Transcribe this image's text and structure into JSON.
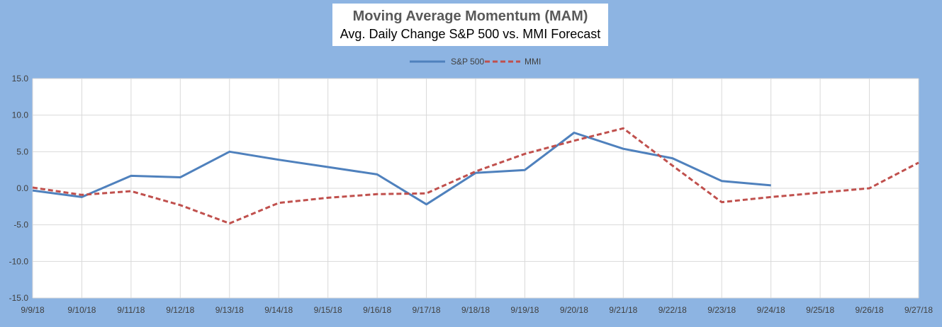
{
  "colors": {
    "background": "#8db4e2",
    "plot_area": "#ffffff",
    "gridline": "#d9d9d9",
    "axis_text": "#404040",
    "sp500": "#4f81bd",
    "mmi": "#c0504d"
  },
  "chart_data": {
    "type": "line",
    "title": "Moving Average Momentum (MAM)",
    "subtitle": "Avg. Daily Change S&P 500 vs. MMI Forecast",
    "xlabel": "",
    "ylabel": "",
    "categories": [
      "9/9/18",
      "9/10/18",
      "9/11/18",
      "9/12/18",
      "9/13/18",
      "9/14/18",
      "9/15/18",
      "9/16/18",
      "9/17/18",
      "9/18/18",
      "9/19/18",
      "9/20/18",
      "9/21/18",
      "9/22/18",
      "9/23/18",
      "9/24/18",
      "9/25/18",
      "9/26/18",
      "9/27/18"
    ],
    "ylim": [
      -15,
      15
    ],
    "yticks": [
      -15,
      -10,
      -5,
      0,
      5,
      10,
      15
    ],
    "ytick_labels": [
      "-15.0",
      "-10.0",
      "-5.0",
      "0.0",
      "5.0",
      "10.0",
      "15.0"
    ],
    "grid": true,
    "legend_position": "top-center",
    "series": [
      {
        "name": "S&P 500",
        "style": "solid",
        "values": [
          -0.3,
          -1.2,
          1.7,
          1.5,
          5.0,
          3.9,
          2.9,
          1.9,
          -2.2,
          2.1,
          2.5,
          7.6,
          5.4,
          4.1,
          1.0,
          0.4,
          null,
          null,
          null
        ]
      },
      {
        "name": "MMI",
        "style": "dashed",
        "values": [
          0.1,
          -0.9,
          -0.4,
          -2.3,
          -4.8,
          -2.0,
          -1.3,
          -0.8,
          -0.7,
          2.3,
          4.7,
          6.5,
          8.2,
          3.1,
          -1.9,
          -1.2,
          -0.6,
          0.0,
          3.5
        ]
      }
    ]
  }
}
